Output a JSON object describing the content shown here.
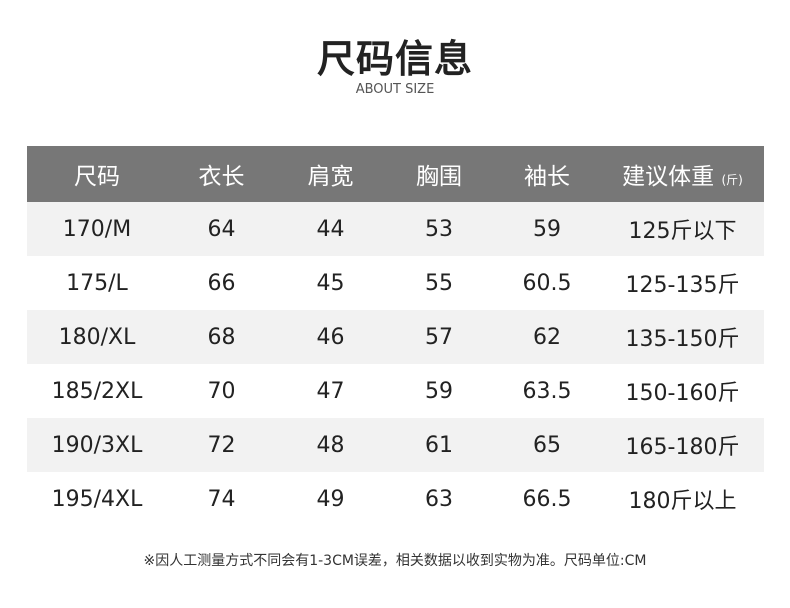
{
  "title": "尺码信息",
  "subtitle": "ABOUT SIZE",
  "table": {
    "headers": [
      "尺码",
      "衣长",
      "肩宽",
      "胸围",
      "袖长",
      "建议体重"
    ],
    "weight_unit": "(斤)",
    "rows": [
      [
        "170/M",
        "64",
        "44",
        "53",
        "59",
        "125斤以下"
      ],
      [
        "175/L",
        "66",
        "45",
        "55",
        "60.5",
        "125-135斤"
      ],
      [
        "180/XL",
        "68",
        "46",
        "57",
        "62",
        "135-150斤"
      ],
      [
        "185/2XL",
        "70",
        "47",
        "59",
        "63.5",
        "150-160斤"
      ],
      [
        "190/3XL",
        "72",
        "48",
        "61",
        "65",
        "165-180斤"
      ],
      [
        "195/4XL",
        "74",
        "49",
        "63",
        "66.5",
        "180斤以上"
      ]
    ]
  },
  "note": "※因人工测量方式不同会有1-3CM误差，相关数据以收到实物为准。尺码单位:CM",
  "colors": {
    "header_bg": "#777777",
    "stripe": "#f2f2f2"
  }
}
